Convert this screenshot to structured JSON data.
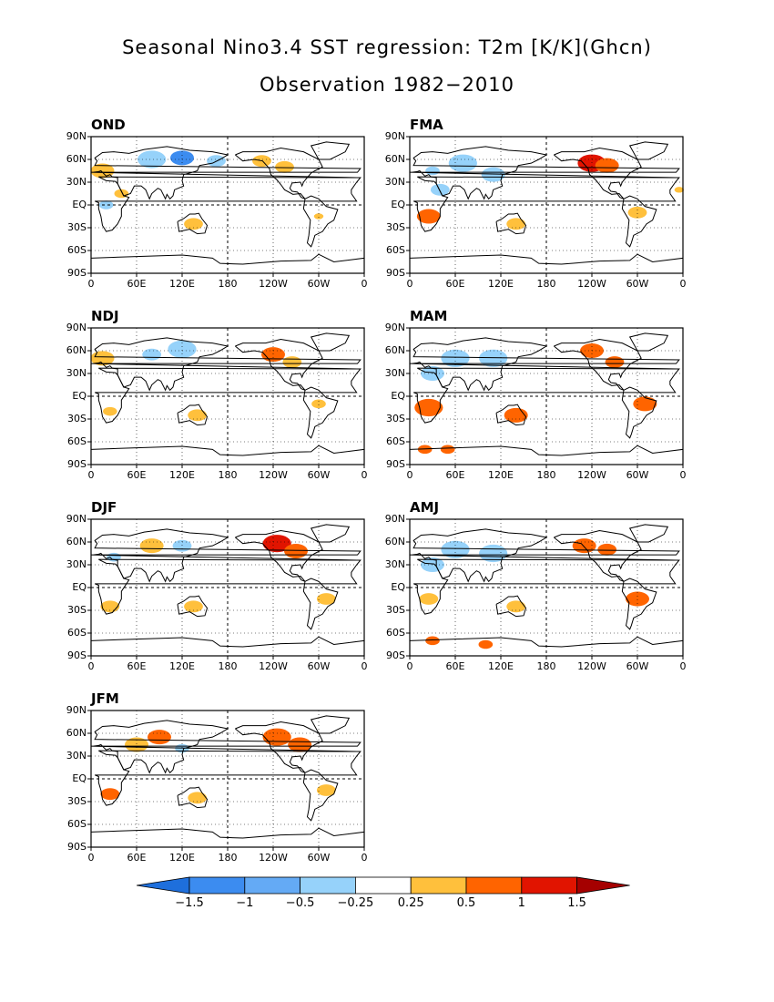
{
  "title": "Seasonal Nino3.4 SST regression: T2m [K/K](Ghcn)",
  "subtitle": "Observation 1982−2010",
  "y_ticks": [
    "90N",
    "60N",
    "30N",
    "EQ",
    "30S",
    "60S",
    "90S"
  ],
  "x_ticks": [
    "0",
    "60E",
    "120E",
    "180",
    "120W",
    "60W",
    "0"
  ],
  "panels": [
    {
      "label": "OND",
      "patches": [
        {
          "lon": 15,
          "lat": 45,
          "level": 1,
          "size": 5
        },
        {
          "lon": 40,
          "lat": 15,
          "level": 1,
          "size": 3
        },
        {
          "lon": 120,
          "lat": 62,
          "level": -2,
          "size": 5
        },
        {
          "lon": 80,
          "lat": 60,
          "level": -1,
          "size": 6
        },
        {
          "lon": 165,
          "lat": 58,
          "level": -1,
          "size": 4
        },
        {
          "lon": 225,
          "lat": 58,
          "level": 1,
          "size": 4
        },
        {
          "lon": 255,
          "lat": 50,
          "level": 1,
          "size": 4
        },
        {
          "lon": 135,
          "lat": -25,
          "level": 1,
          "size": 4
        },
        {
          "lon": 300,
          "lat": -15,
          "level": 1,
          "size": 2
        },
        {
          "lon": 20,
          "lat": 0,
          "level": -1,
          "size": 3
        }
      ]
    },
    {
      "label": "FMA",
      "patches": [
        {
          "lon": 240,
          "lat": 55,
          "level": 3,
          "size": 6
        },
        {
          "lon": 260,
          "lat": 52,
          "level": 2,
          "size": 5
        },
        {
          "lon": 25,
          "lat": -15,
          "level": 2,
          "size": 5
        },
        {
          "lon": 140,
          "lat": -25,
          "level": 1,
          "size": 4
        },
        {
          "lon": 70,
          "lat": 55,
          "level": -1,
          "size": 6
        },
        {
          "lon": 110,
          "lat": 40,
          "level": -1,
          "size": 5
        },
        {
          "lon": 300,
          "lat": -10,
          "level": 1,
          "size": 4
        },
        {
          "lon": 40,
          "lat": 20,
          "level": -1,
          "size": 4
        },
        {
          "lon": 30,
          "lat": 45,
          "level": -1,
          "size": 3
        },
        {
          "lon": 355,
          "lat": 20,
          "level": 1,
          "size": 2
        }
      ]
    },
    {
      "label": "NDJ",
      "patches": [
        {
          "lon": 15,
          "lat": 50,
          "level": 1,
          "size": 5
        },
        {
          "lon": 120,
          "lat": 62,
          "level": -1,
          "size": 6
        },
        {
          "lon": 240,
          "lat": 55,
          "level": 2,
          "size": 5
        },
        {
          "lon": 265,
          "lat": 45,
          "level": 1,
          "size": 4
        },
        {
          "lon": 140,
          "lat": -25,
          "level": 1,
          "size": 4
        },
        {
          "lon": 25,
          "lat": -20,
          "level": 1,
          "size": 3
        },
        {
          "lon": 300,
          "lat": -10,
          "level": 1,
          "size": 3
        },
        {
          "lon": 80,
          "lat": 55,
          "level": -1,
          "size": 4
        }
      ]
    },
    {
      "label": "MAM",
      "patches": [
        {
          "lon": 240,
          "lat": 60,
          "level": 2,
          "size": 5
        },
        {
          "lon": 270,
          "lat": 45,
          "level": 2,
          "size": 4
        },
        {
          "lon": 25,
          "lat": -15,
          "level": 2,
          "size": 6
        },
        {
          "lon": 140,
          "lat": -25,
          "level": 2,
          "size": 5
        },
        {
          "lon": 310,
          "lat": -10,
          "level": 2,
          "size": 5
        },
        {
          "lon": 60,
          "lat": 50,
          "level": -1,
          "size": 6
        },
        {
          "lon": 110,
          "lat": 50,
          "level": -1,
          "size": 6
        },
        {
          "lon": 30,
          "lat": 30,
          "level": -1,
          "size": 5
        },
        {
          "lon": 20,
          "lat": -70,
          "level": 2,
          "size": 3
        },
        {
          "lon": 50,
          "lat": -70,
          "level": 2,
          "size": 3
        }
      ]
    },
    {
      "label": "DJF",
      "patches": [
        {
          "lon": 245,
          "lat": 58,
          "level": 3,
          "size": 6
        },
        {
          "lon": 270,
          "lat": 48,
          "level": 2,
          "size": 5
        },
        {
          "lon": 80,
          "lat": 55,
          "level": 1,
          "size": 5
        },
        {
          "lon": 25,
          "lat": -25,
          "level": 1,
          "size": 4
        },
        {
          "lon": 135,
          "lat": -25,
          "level": 1,
          "size": 4
        },
        {
          "lon": 310,
          "lat": -15,
          "level": 1,
          "size": 4
        },
        {
          "lon": 120,
          "lat": 55,
          "level": -1,
          "size": 4
        },
        {
          "lon": 30,
          "lat": 40,
          "level": -1,
          "size": 3
        }
      ]
    },
    {
      "label": "AMJ",
      "patches": [
        {
          "lon": 230,
          "lat": 55,
          "level": 2,
          "size": 5
        },
        {
          "lon": 260,
          "lat": 50,
          "level": 2,
          "size": 4
        },
        {
          "lon": 300,
          "lat": -15,
          "level": 2,
          "size": 5
        },
        {
          "lon": 25,
          "lat": -15,
          "level": 1,
          "size": 4
        },
        {
          "lon": 140,
          "lat": -25,
          "level": 1,
          "size": 4
        },
        {
          "lon": 60,
          "lat": 50,
          "level": -1,
          "size": 6
        },
        {
          "lon": 110,
          "lat": 45,
          "level": -1,
          "size": 6
        },
        {
          "lon": 30,
          "lat": 30,
          "level": -1,
          "size": 5
        },
        {
          "lon": 100,
          "lat": -75,
          "level": 2,
          "size": 3
        },
        {
          "lon": 30,
          "lat": -70,
          "level": 2,
          "size": 3
        }
      ]
    },
    {
      "label": "JFM",
      "patches": [
        {
          "lon": 245,
          "lat": 55,
          "level": 2,
          "size": 6
        },
        {
          "lon": 275,
          "lat": 45,
          "level": 2,
          "size": 5
        },
        {
          "lon": 90,
          "lat": 55,
          "level": 2,
          "size": 5
        },
        {
          "lon": 60,
          "lat": 45,
          "level": 1,
          "size": 5
        },
        {
          "lon": 25,
          "lat": -20,
          "level": 2,
          "size": 4
        },
        {
          "lon": 140,
          "lat": -25,
          "level": 1,
          "size": 4
        },
        {
          "lon": 310,
          "lat": -15,
          "level": 1,
          "size": 4
        },
        {
          "lon": 120,
          "lat": 40,
          "level": -1,
          "size": 3
        }
      ]
    }
  ],
  "colorbar": {
    "tick_labels": [
      "−1.5",
      "−1",
      "−0.5",
      "−0.25",
      "0.25",
      "0.5",
      "1",
      "1.5"
    ],
    "colors": [
      "#1e6fdc",
      "#3c8cf0",
      "#64aaf5",
      "#96d2fa",
      "#ffffff",
      "#ffc03c",
      "#ff6400",
      "#e11400",
      "#a50000"
    ]
  },
  "level_colors": {
    "-3": "#1e6fdc",
    "-2": "#3c8cf0",
    "-1": "#96d2fa",
    "0": "#ffffff",
    "1": "#ffc03c",
    "2": "#ff6400",
    "3": "#e11400"
  }
}
